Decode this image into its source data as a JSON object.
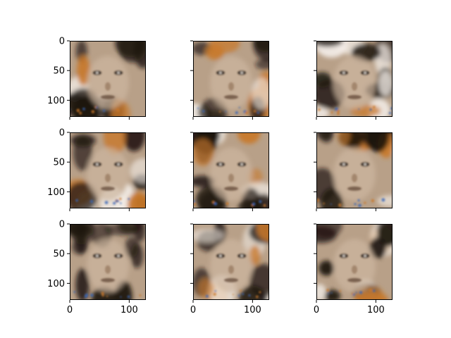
{
  "chart_data": {
    "type": "image_grid",
    "layout": {
      "rows": 3,
      "cols": 3,
      "sharex": true,
      "sharey": true
    },
    "xlim": [
      0,
      128
    ],
    "ylim": [
      128,
      0
    ],
    "xticks": [
      0,
      100
    ],
    "xtick_labels": [
      "0",
      "100"
    ],
    "yticks": [
      0,
      50,
      100
    ],
    "ytick_labels": [
      "0",
      "50",
      "100"
    ],
    "xtick_labels_shown_on": "bottom row",
    "ytick_labels_shown_on": "left column",
    "title": "",
    "xlabel": "",
    "ylabel": "",
    "panels": [
      {
        "row": 0,
        "col": 0,
        "content": "generated face image"
      },
      {
        "row": 0,
        "col": 1,
        "content": "generated face image"
      },
      {
        "row": 0,
        "col": 2,
        "content": "generated face image"
      },
      {
        "row": 1,
        "col": 0,
        "content": "generated face image"
      },
      {
        "row": 1,
        "col": 1,
        "content": "generated face image"
      },
      {
        "row": 1,
        "col": 2,
        "content": "generated face image"
      },
      {
        "row": 2,
        "col": 0,
        "content": "generated face image"
      },
      {
        "row": 2,
        "col": 1,
        "content": "generated face image"
      },
      {
        "row": 2,
        "col": 2,
        "content": "generated face image"
      }
    ],
    "colors": {
      "skin": "#b8a088",
      "dark": "#1c140e",
      "light": "#f2ece6",
      "orange": "#c8782a",
      "blue": "#3a64b4"
    }
  }
}
